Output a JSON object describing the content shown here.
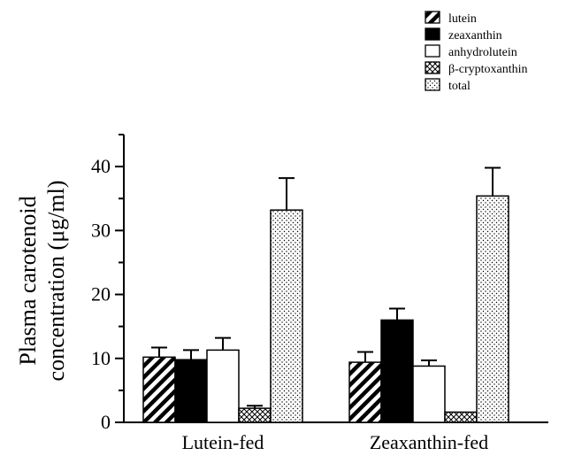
{
  "chart_data": {
    "type": "bar",
    "categories": [
      "Lutein-fed",
      "Zeaxanthin-fed"
    ],
    "series": [
      {
        "name": "lutein",
        "values": [
          10.2,
          9.4
        ],
        "errors": [
          1.5,
          1.6
        ],
        "pattern": "diagonal"
      },
      {
        "name": "zeaxanthin",
        "values": [
          9.8,
          16.0
        ],
        "errors": [
          1.5,
          1.8
        ],
        "pattern": "solid"
      },
      {
        "name": "anhydrolutein",
        "values": [
          11.3,
          8.8
        ],
        "errors": [
          1.9,
          0.9
        ],
        "pattern": "empty"
      },
      {
        "name": "β-cryptoxanthin",
        "values": [
          2.2,
          1.6
        ],
        "errors": [
          0.4,
          0.0
        ],
        "pattern": "crosshatch"
      },
      {
        "name": "total",
        "values": [
          33.2,
          35.4
        ],
        "errors": [
          5.0,
          4.4
        ],
        "pattern": "dots"
      }
    ],
    "ylabel_line1": "Plasma carotenoid",
    "ylabel_line2": "concentration (μg/ml)",
    "ylim": [
      0,
      45
    ],
    "yticks": [
      0,
      10,
      20,
      30,
      40
    ],
    "legend_position": "top-right",
    "grid": false
  },
  "colors": {
    "ink": "#000000",
    "fill_empty": "#ffffff"
  }
}
